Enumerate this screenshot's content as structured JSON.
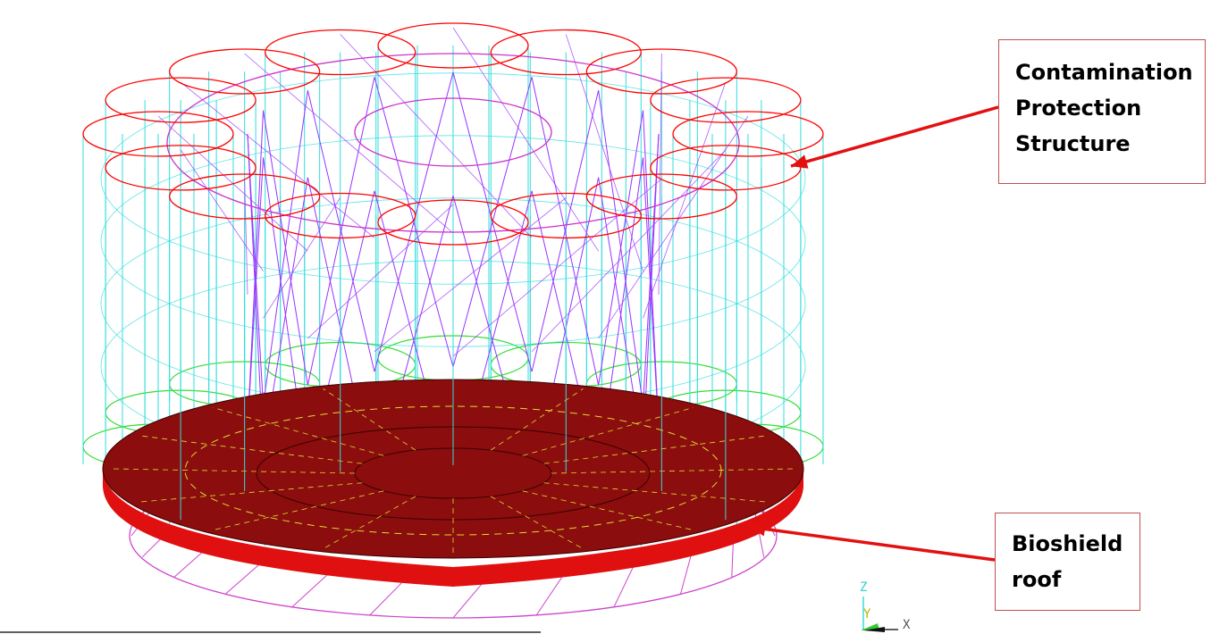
{
  "callouts": {
    "contamination": {
      "line1": "Contamination",
      "line2": "Protection",
      "line3": "Structure"
    },
    "bioshield": {
      "line1": "Bioshield",
      "line2": "roof"
    }
  },
  "triad": {
    "z": "Z",
    "y": "Y",
    "x": "X"
  },
  "colors": {
    "cps_rings": "#ff0000",
    "columns": "#33dddd",
    "bracing": "#9933ff",
    "inner_ring": "#cc33cc",
    "base_rings": "#33dd33",
    "roof_fill": "#8b0d0d",
    "roof_rim": "#e01010",
    "roof_dashes": "#dddd33",
    "lower_braces": "#cc44cc",
    "callout_border": "#c0504d",
    "arrow": "#e31010"
  }
}
